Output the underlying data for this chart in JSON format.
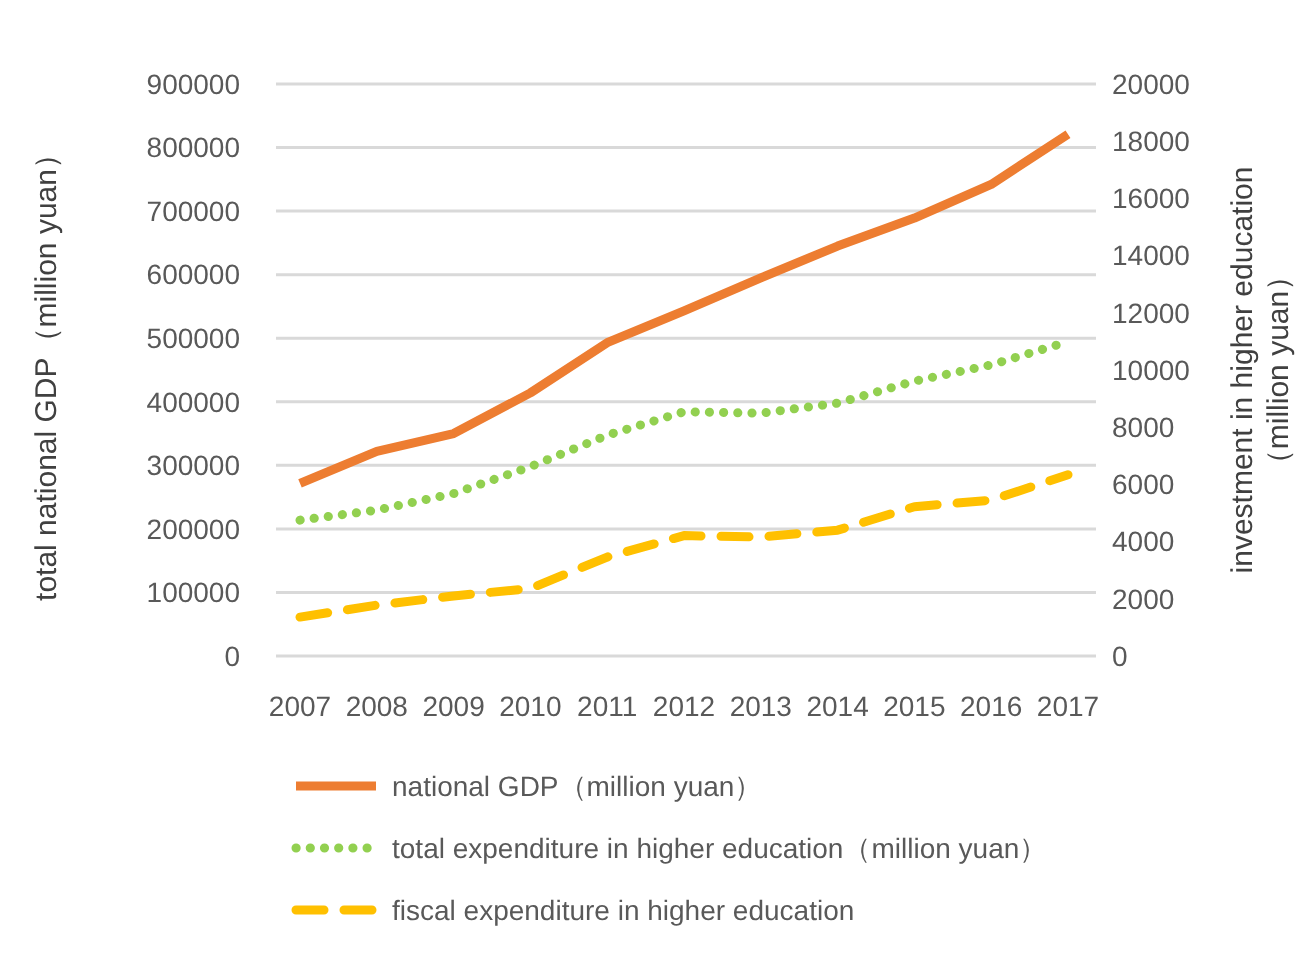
{
  "chart_data": {
    "type": "line",
    "ylabel": "total national GDP（million yuan）",
    "y2label": "investment in higher education\n（million yuan）",
    "categories": [
      "2007",
      "2008",
      "2009",
      "2010",
      "2011",
      "2012",
      "2013",
      "2014",
      "2015",
      "2016",
      "2017"
    ],
    "series": [
      {
        "name": "national GDP（million yuan）",
        "color": "#ed7d31",
        "line_style": "solid",
        "values": [
          271600,
          322000,
          350000,
          414000,
          493000,
          543000,
          595000,
          645000,
          689000,
          742000,
          821000
        ]
      },
      {
        "name": "total expenditure in higher education（million yuan）",
        "color": "#92d050",
        "line_style": "dotted",
        "axis": "y2",
        "values": [
          4750,
          5100,
          5680,
          6620,
          7720,
          8540,
          8490,
          8840,
          9610,
          10180,
          10990
        ]
      },
      {
        "name": "fiscal expenditure in higher education",
        "color": "#ffc000",
        "line_style": "dashed",
        "axis": "y2",
        "values": [
          1360,
          1780,
          2100,
          2360,
          3460,
          4210,
          4160,
          4400,
          5220,
          5450,
          6340
        ]
      }
    ],
    "ylim": [
      0,
      900000
    ],
    "yticks": [
      0,
      100000,
      200000,
      300000,
      400000,
      500000,
      600000,
      700000,
      800000,
      900000
    ],
    "y2lim": [
      0,
      20000
    ],
    "y2ticks": [
      0,
      2000,
      4000,
      6000,
      8000,
      10000,
      12000,
      14000,
      16000,
      18000,
      20000
    ],
    "grid": "y",
    "legend": "bottom",
    "marker": "none"
  }
}
